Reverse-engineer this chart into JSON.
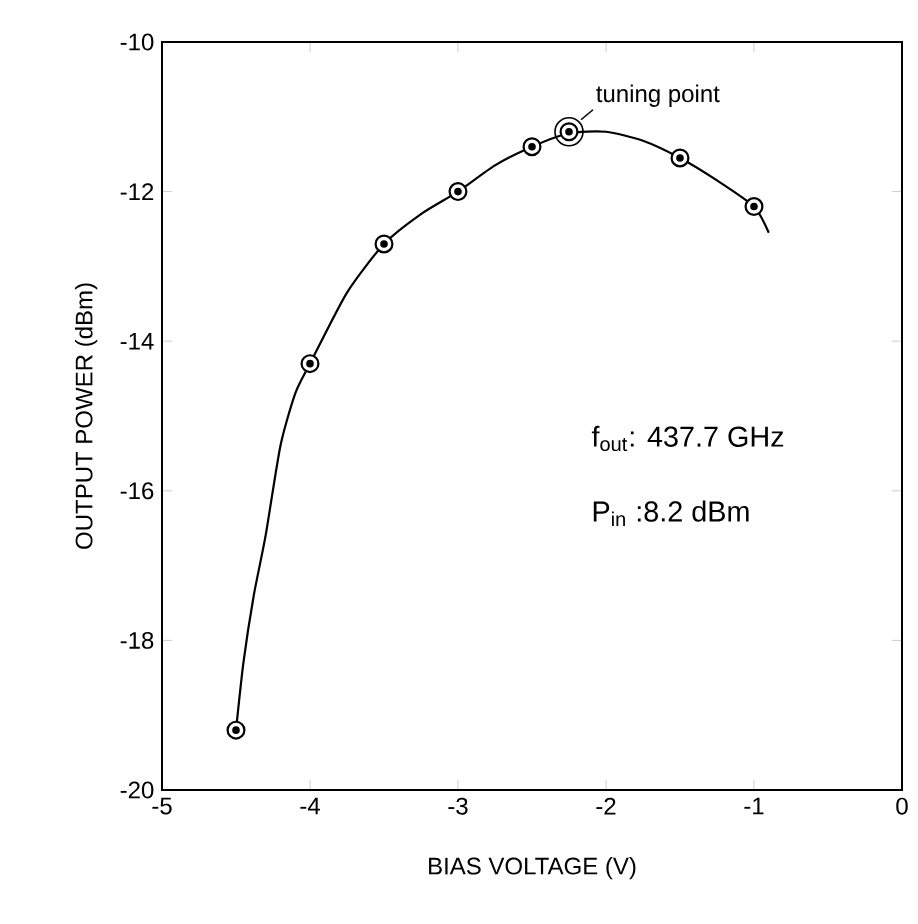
{
  "chart_data": {
    "type": "scatter",
    "xlabel": "BIAS VOLTAGE (V)",
    "ylabel": "OUTPUT POWER (dBm)",
    "xlim": [
      -5,
      0
    ],
    "ylim": [
      -20,
      -10
    ],
    "xticks": [
      -5,
      -4,
      -3,
      -2,
      -1,
      0
    ],
    "yticks": [
      -20,
      -18,
      -16,
      -14,
      -12,
      -10
    ],
    "marker": "circle",
    "grid": false,
    "series": [
      {
        "color": "#000000",
        "x": [
          -4.5,
          -4.0,
          -3.5,
          -3.0,
          -2.5,
          -2.25,
          -1.5,
          -1.0
        ],
        "values": [
          -19.2,
          -14.3,
          -12.7,
          -12.0,
          -11.4,
          -11.2,
          -11.55,
          -12.2
        ]
      },
      {
        "type": "line",
        "marker": "none",
        "line_style": "solid",
        "color": "#000000",
        "x": [
          -4.5,
          -4.45,
          -4.38,
          -4.3,
          -4.2,
          -4.1,
          -4.0,
          -3.75,
          -3.5,
          -3.25,
          -3.0,
          -2.75,
          -2.5,
          -2.25,
          -2.0,
          -1.75,
          -1.5,
          -1.25,
          -1.0,
          -0.9
        ],
        "values": [
          -19.2,
          -18.3,
          -17.4,
          -16.6,
          -15.4,
          -14.7,
          -14.3,
          -13.35,
          -12.7,
          -12.3,
          -12.0,
          -11.65,
          -11.4,
          -11.22,
          -11.2,
          -11.32,
          -11.55,
          -11.85,
          -12.2,
          -12.55
        ]
      }
    ],
    "annotations": [
      {
        "text": "tuning point",
        "x": -2.25,
        "y": -11.2
      },
      "f$_{out}$: 437.7 GHz",
      "P$_{in}$ :8.2 dBm"
    ]
  }
}
